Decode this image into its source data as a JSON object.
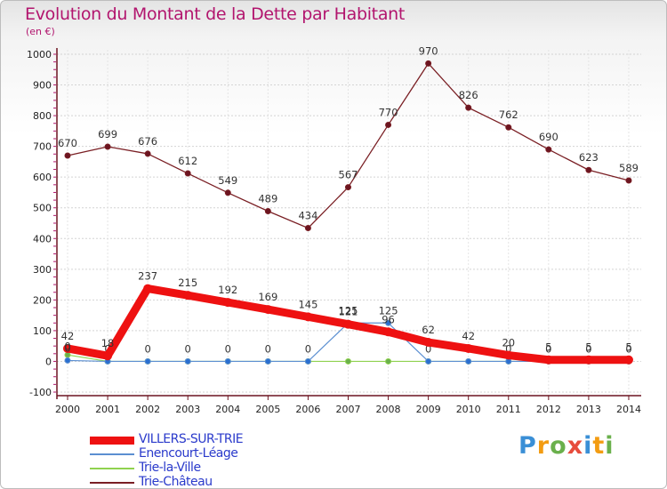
{
  "title": "Evolution du Montant de la Dette par Habitant",
  "unit": "(en €)",
  "logo": {
    "text": "Proxiti",
    "colors": [
      "#3a8fd6",
      "#f39c12",
      "#6ab04c",
      "#e74c3c",
      "#3a8fd6",
      "#f39c12",
      "#6ab04c"
    ]
  },
  "chart_data": {
    "type": "line",
    "title": "Evolution du Montant de la Dette par Habitant",
    "ylabel": "(en €)",
    "ylim": [
      -100,
      1000
    ],
    "yticks": [
      -100,
      0,
      100,
      200,
      300,
      400,
      500,
      600,
      700,
      800,
      900,
      1000
    ],
    "categories": [
      "2000",
      "2001",
      "2002",
      "2003",
      "2004",
      "2005",
      "2006",
      "2007",
      "2008",
      "2009",
      "2010",
      "2011",
      "2012",
      "2013",
      "2014"
    ],
    "series": [
      {
        "name": "Trie-Château",
        "color": "#7a1f24",
        "values": [
          670,
          699,
          676,
          612,
          549,
          489,
          434,
          567,
          770,
          970,
          826,
          762,
          690,
          623,
          589
        ],
        "labels": [
          "670",
          "699",
          "676",
          "612",
          "549",
          "489",
          "434",
          "567",
          "770",
          "970",
          "826",
          "762",
          "690",
          "623",
          "589"
        ]
      },
      {
        "name": "Trie-la-Ville",
        "color": "#8fd24f",
        "values": [
          21,
          0,
          0,
          0,
          0,
          0,
          0,
          0,
          0,
          0,
          0,
          0,
          0,
          0,
          0
        ],
        "labels": [
          "",
          "",
          "",
          "",
          "",
          "",
          "",
          "",
          "",
          "",
          "",
          "",
          "",
          "",
          ""
        ]
      },
      {
        "name": "Enencourt-Léage",
        "color": "#5b8fd1",
        "values": [
          3,
          0,
          0,
          0,
          0,
          0,
          0,
          125,
          125,
          0,
          0,
          0,
          0,
          0,
          0
        ],
        "labels": [
          "",
          "0",
          "0",
          "0",
          "0",
          "0",
          "0",
          "125",
          "125",
          "0",
          "0",
          "0",
          "0",
          "0",
          "0"
        ]
      },
      {
        "name": "VILLERS-SUR-TRIE",
        "color": "#ee1111",
        "values": [
          42,
          18,
          237,
          215,
          192,
          169,
          145,
          121,
          96,
          62,
          42,
          20,
          5,
          5,
          5
        ],
        "labels": [
          "42",
          "18",
          "237",
          "215",
          "192",
          "169",
          "145",
          "121",
          "96",
          "62",
          "42",
          "20",
          "5",
          "5",
          "5"
        ]
      }
    ],
    "extra_labels": [
      "0",
      "0",
      "0",
      "0",
      "0",
      "0",
      "0",
      "0",
      "21"
    ]
  },
  "legend": [
    {
      "name": "VILLERS-SUR-TRIE",
      "color": "#ee1111",
      "text_color": "#2a3acb",
      "thickness": 9
    },
    {
      "name": "Enencourt-Léage",
      "color": "#5b8fd1",
      "text_color": "#2a3acb",
      "thickness": 2
    },
    {
      "name": "Trie-la-Ville",
      "color": "#8fd24f",
      "text_color": "#2a3acb",
      "thickness": 2
    },
    {
      "name": "Trie-Château",
      "color": "#7a1f24",
      "text_color": "#2a3acb",
      "thickness": 2
    }
  ]
}
